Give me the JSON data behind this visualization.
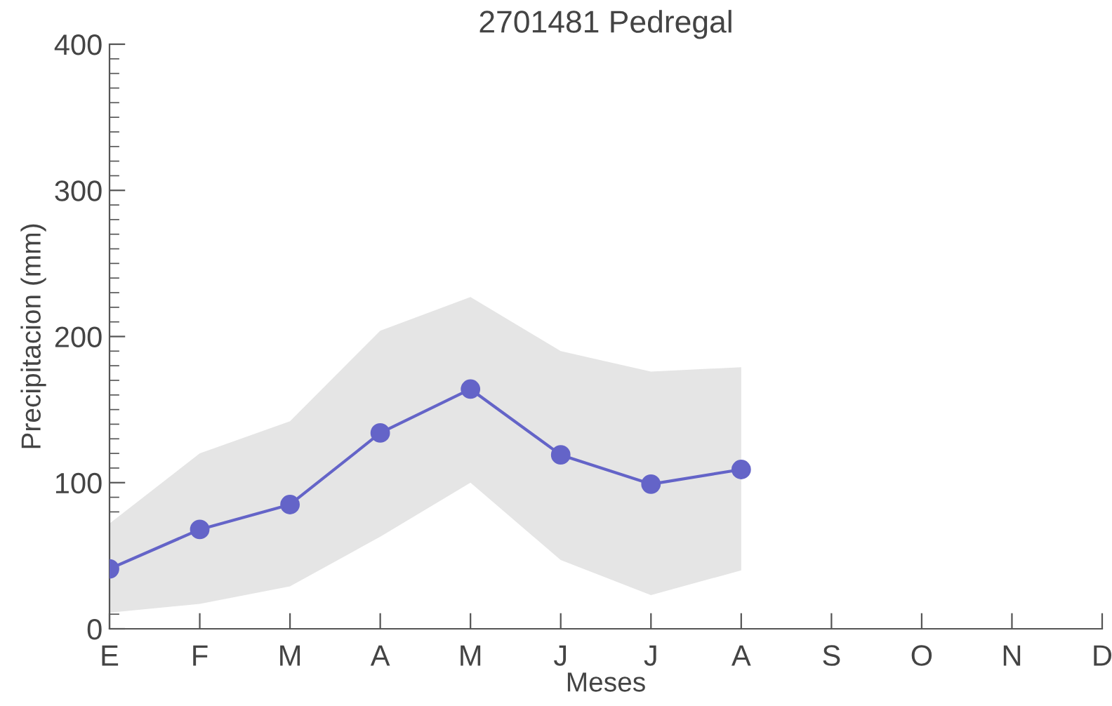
{
  "chart_data": {
    "type": "line",
    "title": "2701481 Pedregal",
    "xlabel": "Meses",
    "ylabel": "Precipitacion (mm)",
    "categories": [
      "E",
      "F",
      "M",
      "A",
      "M",
      "J",
      "J",
      "A",
      "S",
      "O",
      "N",
      "D"
    ],
    "series": [
      {
        "color": "#6464c8",
        "marker": "circle",
        "values": [
          41,
          68,
          85,
          134,
          164,
          119,
          99,
          109,
          null,
          null,
          null,
          null
        ],
        "lower": [
          11,
          17,
          29,
          63,
          100,
          47,
          23,
          40,
          null,
          null,
          null,
          null
        ],
        "upper": [
          72,
          120,
          142,
          204,
          227,
          190,
          176,
          179,
          null,
          null,
          null,
          null
        ]
      }
    ],
    "ylim": [
      0,
      400
    ],
    "yticks": [
      0,
      100,
      200,
      300,
      400
    ],
    "grid": false,
    "legend": false
  }
}
